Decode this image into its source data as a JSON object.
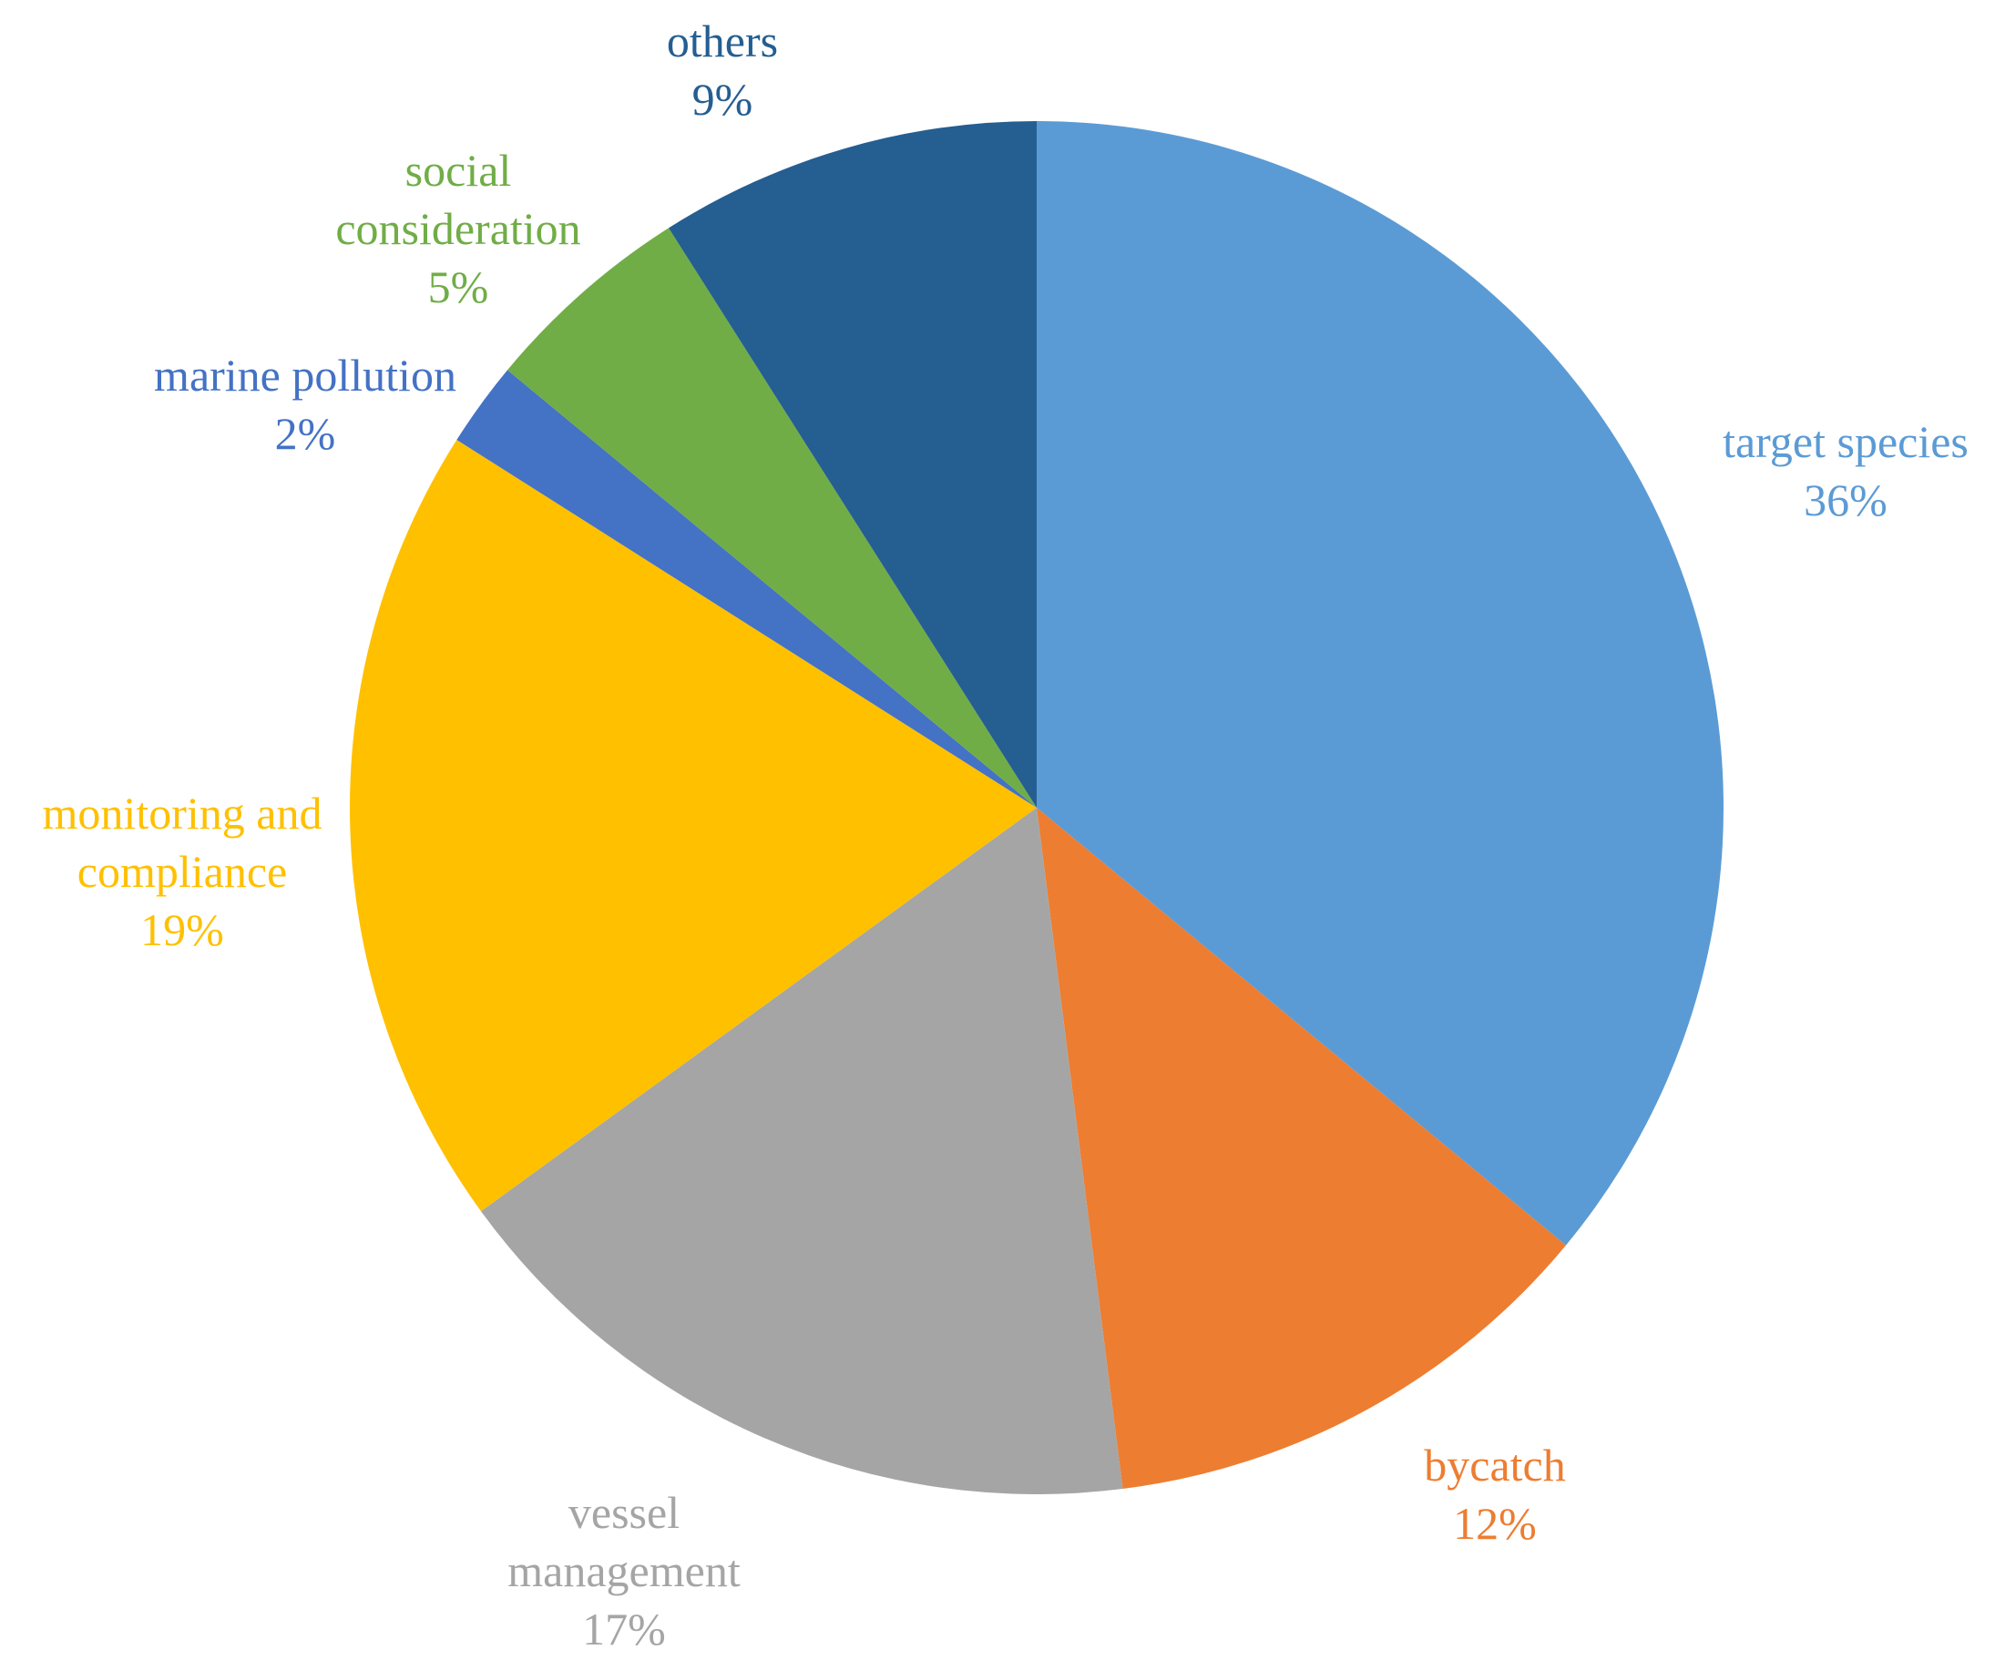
{
  "chart_data": {
    "type": "pie",
    "categories": [
      "target species",
      "bycatch",
      "vessel management",
      "monitoring and compliance",
      "marine pollution",
      "social consideration",
      "others"
    ],
    "values": [
      36,
      12,
      17,
      19,
      2,
      5,
      9
    ],
    "value_labels": [
      "36%",
      "12%",
      "17%",
      "19%",
      "2%",
      "5%",
      "9%"
    ],
    "colors": [
      "#5b9bd5",
      "#ed7d31",
      "#a5a5a5",
      "#ffc000",
      "#4472c4",
      "#70ad47",
      "#255e91"
    ]
  }
}
